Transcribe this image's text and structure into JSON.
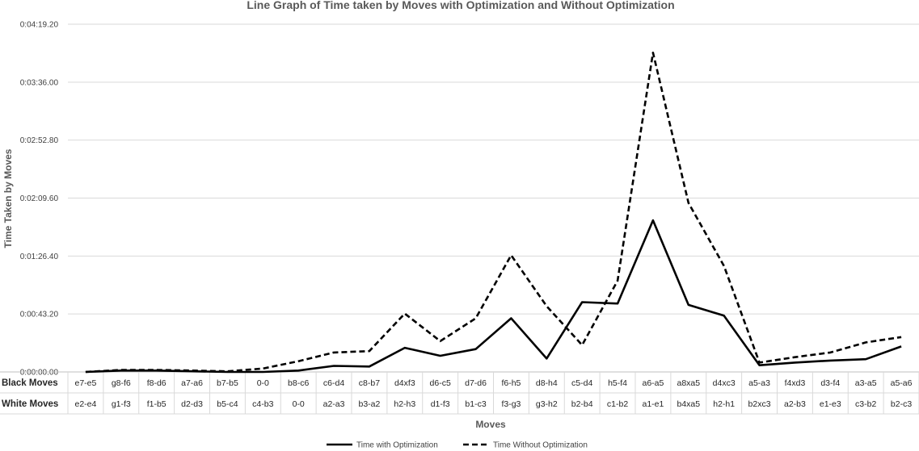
{
  "chart_data": {
    "type": "line",
    "title": "Line Graph of Time taken by Moves with Optimization and Without Optimization",
    "xlabel": "Moves",
    "ylabel": "Time Taken by  Moves",
    "y_unit": "seconds",
    "ylim": [
      0,
      259.2
    ],
    "yticks": [
      0,
      43.2,
      86.4,
      129.6,
      172.8,
      216,
      259.2
    ],
    "ytick_labels": [
      "0:00:00.00",
      "0:00:43.20",
      "0:01:26.40",
      "0:02:09.60",
      "0:02:52.80",
      "0:03:36.00",
      "0:04:19.20"
    ],
    "grid": true,
    "legend_position": "bottom",
    "category_rows": [
      {
        "label": "Black Moves",
        "values": [
          "e7-e5",
          "g8-f6",
          "f8-d6",
          "a7-a6",
          "b7-b5",
          "0-0",
          "b8-c6",
          "c6-d4",
          "c8-b7",
          "d4xf3",
          "d6-c5",
          "d7-d6",
          "f6-h5",
          "d8-h4",
          "c5-d4",
          "h5-f4",
          "a6-a5",
          "a8xa5",
          "d4xc3",
          "a5-a3",
          "f4xd3",
          "d3-f4",
          "a3-a5",
          "a5-a6"
        ]
      },
      {
        "label": "White Moves",
        "values": [
          "e2-e4",
          "g1-f3",
          "f1-b5",
          "d2-d3",
          "b5-c4",
          "c4-b3",
          "0-0",
          "a2-a3",
          "b3-a2",
          "h2-h3",
          "d1-f3",
          "b1-c3",
          "f3-g3",
          "g3-h2",
          "b2-b4",
          "c1-b2",
          "a1-e1",
          "b4xa5",
          "h2-h1",
          "b2xc3",
          "a2-b3",
          "e1-e3",
          "c3-b2",
          "b2-c3"
        ]
      }
    ],
    "series": [
      {
        "name": "Time with Optimization",
        "color": "#000000",
        "style": "solid",
        "values": [
          0,
          1,
          1,
          0.5,
          0,
          0,
          1,
          4.5,
          4,
          18,
          12,
          17,
          40,
          10,
          52,
          51,
          113,
          50,
          42,
          5,
          7,
          8.5,
          9.5,
          19
        ]
      },
      {
        "name": "Time Without Optimization",
        "color": "#000000",
        "style": "dashed",
        "values": [
          0,
          1.5,
          1.5,
          1,
          0.5,
          2.5,
          8,
          14.5,
          15.5,
          43.5,
          23,
          40,
          87,
          49,
          20,
          68,
          238,
          126,
          79,
          7,
          11,
          14.5,
          22,
          26
        ]
      }
    ]
  }
}
